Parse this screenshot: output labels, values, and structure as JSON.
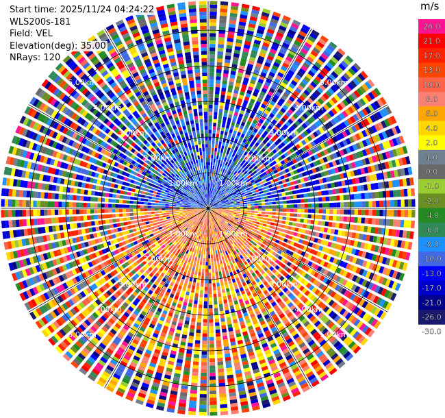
{
  "header": {
    "start_time": "Start time: 2025/11/24 04:24:22",
    "instrument": "WLS200s-181",
    "field": "Field: VEL",
    "elevation": "Elevation(deg): 35.00",
    "nrays": "NRays: 120"
  },
  "chart_data": {
    "type": "ppi-polar",
    "field": "VEL",
    "units": "m/s",
    "elevation_deg": 35.0,
    "n_rays": 120,
    "range_rings_km": [
      1.0,
      2.0,
      3.0,
      4.0,
      5.0
    ],
    "range_ring_labels": [
      "1.00km",
      "2.00km",
      "3.00km",
      "4.00km",
      "5.00km"
    ],
    "max_range_km": 5.82,
    "colorbar": {
      "unit_label": "m/s",
      "tick_labels": [
        "26.0",
        "21.0",
        "17.0",
        "13.0",
        "10.0",
        "8.0",
        "6.0",
        "4.0",
        "2.0",
        "1.0",
        "0.0",
        "-1.0",
        "-2.0",
        "-4.0",
        "-6.0",
        "-8.0",
        "-10.0",
        "-13.0",
        "-17.0",
        "-21.0",
        "-26.0",
        "-30.0"
      ],
      "colors": [
        "#ff1493",
        "#ff0000",
        "#ff2400",
        "#ff4500",
        "#ff6347",
        "#fa8072",
        "#ffa500",
        "#ffd700",
        "#ffff00",
        "#708090",
        "#696969",
        "#9acd32",
        "#6b8e23",
        "#228b22",
        "#2e8b57",
        "#1e90ff",
        "#4169e1",
        "#0000ff",
        "#0000cd",
        "#00008b",
        "#191970"
      ]
    },
    "velocity_pattern": {
      "description_free": true,
      "near_field_north": "-10.0",
      "near_field_south": "8.0"
    }
  }
}
